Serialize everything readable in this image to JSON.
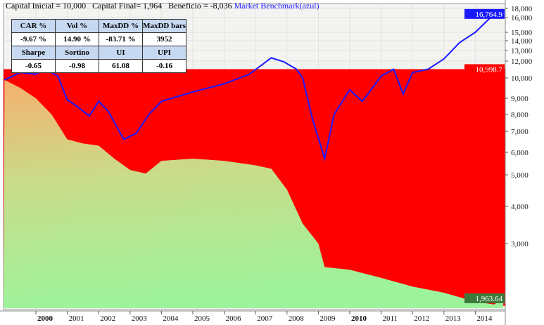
{
  "header": {
    "capital_inicial": "Capital Inicial = 10,000",
    "capital_final": "Capital Final= 1,964",
    "beneficio": "Beneficio = -8,036",
    "benchmark": "Market Benchmark(azul)"
  },
  "stats_table": {
    "rows": [
      [
        "CAR %",
        "Vol %",
        "MaxDD %",
        "MaxDD bars"
      ],
      [
        "-9.67 %",
        "14.90 %",
        "-83.71 %",
        "3952"
      ],
      [
        "Sharpe",
        "Sortino",
        "UI",
        "UPI"
      ],
      [
        "-0.65",
        "-0.98",
        "61.08",
        "-0.16"
      ]
    ]
  },
  "colors": {
    "equity_fill_top": "#f5b06e",
    "equity_fill_bottom": "#9df39b",
    "drawdown": "#ff0000",
    "benchmark": "#1a1aff",
    "final_label": "#3c7a3c"
  },
  "chart_data": {
    "type": "area",
    "yscale": "log",
    "ylim": [
      1800,
      18500
    ],
    "xlim": [
      1999.0,
      2014.9
    ],
    "y_ticks": [
      18000,
      16000,
      15000,
      14000,
      13000,
      12000,
      10000,
      9000,
      8000,
      7000,
      6000,
      5000,
      4000,
      3000
    ],
    "y_tick_labels": [
      "18,000",
      "16,000",
      "15,000",
      "14,000",
      "13,000",
      "12,000",
      "10,000",
      "9,000",
      "8,000",
      "7,000",
      "6,000",
      "5,000",
      "4,000",
      "3,000"
    ],
    "x_ticks": [
      2000,
      2001,
      2002,
      2003,
      2004,
      2005,
      2006,
      2007,
      2008,
      2009,
      2010,
      2011,
      2012,
      2013,
      2014
    ],
    "x_tick_labels": [
      "2000",
      "2001",
      "2002",
      "2003",
      "2004",
      "2005",
      "2006",
      "2007",
      "2008",
      "2009",
      "2010",
      "2011",
      "2012",
      "2013",
      "2014"
    ],
    "value_labels": {
      "benchmark_last": "16,764.9",
      "peak_equity": "10,998.7",
      "equity_last": "1,963.64"
    },
    "peak_value": 10998.7,
    "series": [
      {
        "name": "Equity",
        "x": [
          1999.0,
          1999.5,
          2000.0,
          2000.5,
          2001.0,
          2001.5,
          2002.0,
          2002.5,
          2003.0,
          2003.5,
          2004.0,
          2005.0,
          2006.0,
          2007.0,
          2007.5,
          2008.0,
          2008.5,
          2009.0,
          2009.2,
          2010.0,
          2011.0,
          2012.0,
          2013.0,
          2014.0,
          2014.6,
          2014.9
        ],
        "values": [
          9900,
          9500,
          9000,
          8000,
          6600,
          6400,
          6300,
          5700,
          5200,
          5050,
          5600,
          5700,
          5600,
          5400,
          5250,
          4500,
          3500,
          3000,
          2500,
          2450,
          2300,
          2150,
          2050,
          1900,
          1850,
          1964
        ]
      },
      {
        "name": "Market Benchmark",
        "x": [
          1999.0,
          1999.5,
          2000.0,
          2000.3,
          2000.7,
          2001.0,
          2001.3,
          2001.7,
          2002.0,
          2002.3,
          2002.8,
          2003.2,
          2003.6,
          2004.0,
          2005.0,
          2006.0,
          2006.8,
          2007.5,
          2007.9,
          2008.3,
          2008.5,
          2008.8,
          2009.2,
          2009.5,
          2010.0,
          2010.4,
          2011.0,
          2011.4,
          2011.7,
          2012.0,
          2012.5,
          2013.0,
          2013.5,
          2014.0,
          2014.5,
          2014.9
        ],
        "values": [
          9900,
          10600,
          10400,
          11000,
          10200,
          8900,
          8500,
          7900,
          8800,
          8200,
          6600,
          6900,
          8000,
          8800,
          9300,
          9700,
          10400,
          12300,
          11900,
          11000,
          10000,
          7800,
          5700,
          8000,
          9400,
          8800,
          10200,
          11000,
          9200,
          10600,
          11000,
          12200,
          13800,
          15000,
          16100,
          16765
        ]
      }
    ]
  }
}
